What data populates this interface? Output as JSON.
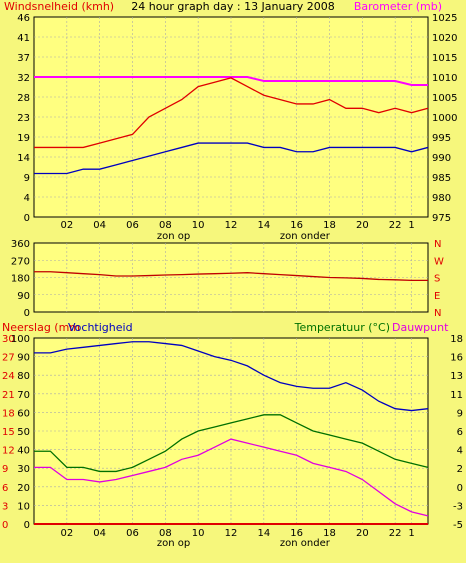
{
  "chart_data": [
    {
      "type": "line",
      "title": "24 hour graph day : 13 January 2008",
      "ylabel": "Windsnelheid (kmh)",
      "ylabel_right": "Barometer (mb)",
      "ylim": [
        0,
        46
      ],
      "ylim_right": [
        975,
        1025
      ],
      "yticks_left": [
        "0",
        "4",
        "9",
        "14",
        "19",
        "23",
        "28",
        "32",
        "37",
        "41",
        "46"
      ],
      "yticks_right": [
        "975",
        "980",
        "985",
        "990",
        "995",
        "1000",
        "1005",
        "1010",
        "1015",
        "1020",
        "1025"
      ],
      "x_ticks": [
        "02",
        "04",
        "06",
        "08",
        "10",
        "12",
        "14",
        "16",
        "18",
        "20",
        "22",
        "1"
      ],
      "x_annotations": [
        "zon op",
        "zon onder"
      ],
      "colors": {
        "gust": "#e00000",
        "wind": "#0000c0",
        "barometer": "#ff00ff"
      },
      "x": [
        1,
        2,
        3,
        4,
        5,
        6,
        7,
        8,
        9,
        10,
        11,
        12,
        13,
        14,
        15,
        16,
        17,
        18,
        19,
        20,
        21,
        22,
        23,
        24
      ],
      "series": [
        {
          "name": "Barometer",
          "axis": "right",
          "color": "#ff00ff",
          "values": [
            1010,
            1010,
            1010,
            1010,
            1010,
            1010,
            1010,
            1010,
            1010,
            1010,
            1010,
            1010,
            1010,
            1009,
            1009,
            1009,
            1009,
            1009,
            1009,
            1009,
            1009,
            1009,
            1008,
            1008
          ]
        },
        {
          "name": "Windstoten",
          "axis": "left",
          "color": "#e00000",
          "values": [
            16,
            16,
            16,
            17,
            18,
            19,
            23,
            25,
            27,
            30,
            31,
            32,
            30,
            28,
            27,
            26,
            26,
            27,
            25,
            25,
            24,
            25,
            24,
            25
          ]
        },
        {
          "name": "Windsnelheid",
          "axis": "left",
          "color": "#0000c0",
          "values": [
            10,
            10,
            11,
            11,
            12,
            13,
            14,
            15,
            16,
            17,
            17,
            17,
            17,
            16,
            16,
            15,
            15,
            16,
            16,
            16,
            16,
            16,
            15,
            16
          ]
        }
      ]
    },
    {
      "type": "line",
      "ylim": [
        0,
        360
      ],
      "yticks_left": [
        "0",
        "90",
        "180",
        "270",
        "360"
      ],
      "yticks_right": [
        "N",
        "E",
        "S",
        "W",
        "N"
      ],
      "colors": {
        "direction": "#c00000"
      },
      "x": [
        1,
        2,
        3,
        4,
        5,
        6,
        7,
        8,
        9,
        10,
        11,
        12,
        13,
        14,
        15,
        16,
        17,
        18,
        19,
        20,
        21,
        22,
        23,
        24
      ],
      "series": [
        {
          "name": "Windrichting",
          "axis": "left",
          "color": "#c00000",
          "values": [
            210,
            205,
            200,
            195,
            188,
            188,
            190,
            193,
            195,
            198,
            200,
            202,
            205,
            200,
            195,
            190,
            185,
            180,
            178,
            175,
            170,
            168,
            165,
            165
          ]
        }
      ]
    },
    {
      "type": "line",
      "ylabel": "Neerslag (mm",
      "ylabel2": "Vochtigheid",
      "ylabel_right": "Temperatuur (°C)",
      "ylabel_right2": "Dauwpunt",
      "x_ticks": [
        "02",
        "04",
        "06",
        "08",
        "10",
        "12",
        "14",
        "16",
        "18",
        "20",
        "22",
        "1"
      ],
      "x_annotations": [
        "zon op",
        "zon onder"
      ],
      "yticks_rain": [
        "0",
        "3",
        "6",
        "9",
        "12",
        "15",
        "18",
        "21",
        "24",
        "27",
        "30"
      ],
      "yticks_humidity": [
        "0",
        "10",
        "20",
        "30",
        "40",
        "50",
        "60",
        "70",
        "80",
        "90",
        "100"
      ],
      "yticks_temp": [
        "-5",
        "-3",
        "0",
        "2",
        "4",
        "6",
        "9",
        "11",
        "13",
        "16",
        "18"
      ],
      "ylim_rain": [
        0,
        30
      ],
      "ylim_humidity": [
        0,
        100
      ],
      "ylim_temp": [
        -5,
        18
      ],
      "colors": {
        "humidity": "#0000c0",
        "temperature": "#007000",
        "dewpoint": "#e000e0",
        "rain": "#e00000"
      },
      "x": [
        1,
        2,
        3,
        4,
        5,
        6,
        7,
        8,
        9,
        10,
        11,
        12,
        13,
        14,
        15,
        16,
        17,
        18,
        19,
        20,
        21,
        22,
        23,
        24
      ],
      "series": [
        {
          "name": "Vochtigheid",
          "axis": "humidity",
          "color": "#0000c0",
          "values": [
            92,
            94,
            95,
            96,
            97,
            98,
            98,
            97,
            96,
            93,
            90,
            88,
            85,
            80,
            76,
            74,
            73,
            73,
            76,
            72,
            66,
            62,
            61,
            62
          ]
        },
        {
          "name": "Temperatuur",
          "axis": "temp",
          "color": "#007000",
          "values": [
            4,
            2,
            2,
            1.5,
            1.5,
            2,
            3,
            4,
            5.5,
            6.5,
            7,
            7.5,
            8,
            8.5,
            8.5,
            7.5,
            6.5,
            6,
            5.5,
            5,
            4,
            3,
            2.5,
            2
          ]
        },
        {
          "name": "Dauwpunt",
          "axis": "temp",
          "color": "#e000e0",
          "values": [
            2,
            0.5,
            0.5,
            0.2,
            0.5,
            1,
            1.5,
            2,
            3,
            3.5,
            4.5,
            5.5,
            5,
            4.5,
            4,
            3.5,
            2.5,
            2,
            1.5,
            0.5,
            -1,
            -2.5,
            -3.5,
            -4
          ]
        },
        {
          "name": "Neerslag",
          "axis": "rain",
          "color": "#e00000",
          "values": [
            0,
            0,
            0,
            0,
            0,
            0,
            0,
            0,
            0,
            0,
            0,
            0,
            0,
            0,
            0,
            0,
            0,
            0,
            0,
            0,
            0,
            0,
            0,
            0
          ]
        }
      ]
    }
  ]
}
